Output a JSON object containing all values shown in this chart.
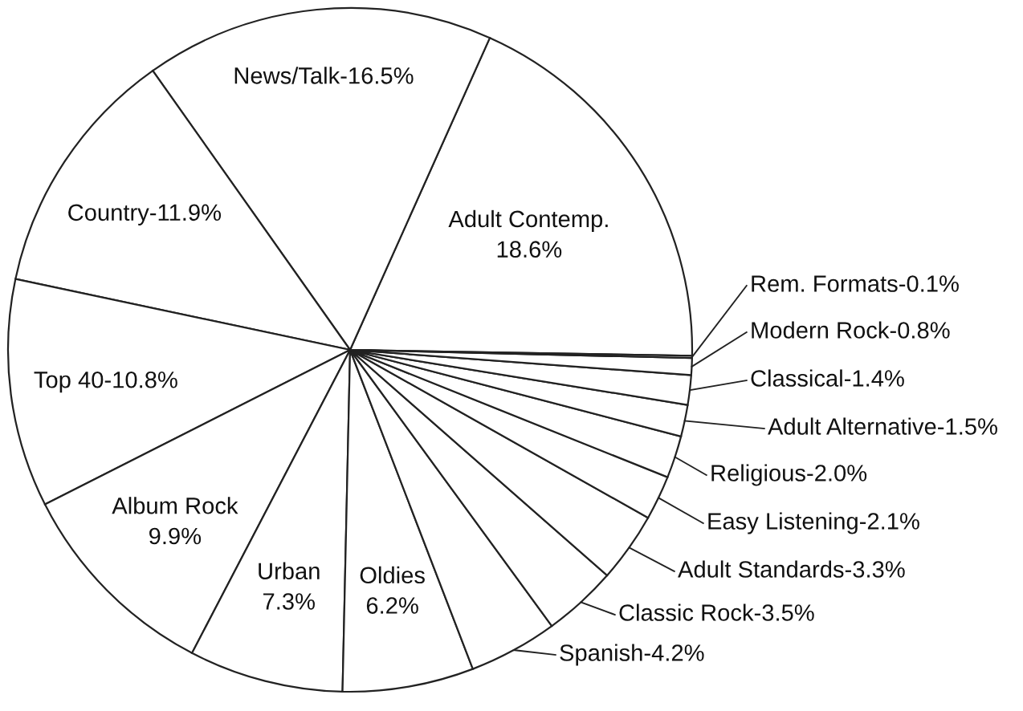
{
  "chart_data": {
    "type": "pie",
    "categories": [
      "Adult Contemp.",
      "News/Talk",
      "Country",
      "Top 40",
      "Album Rock",
      "Urban",
      "Oldies",
      "Spanish",
      "Classic Rock",
      "Adult Standards",
      "Easy Listening",
      "Religious",
      "Adult Alternative",
      "Classical",
      "Modern Rock",
      "Rem. Formats"
    ],
    "values": [
      18.6,
      16.5,
      11.9,
      10.8,
      9.9,
      7.3,
      6.2,
      4.2,
      3.5,
      3.3,
      2.1,
      2.0,
      1.5,
      1.4,
      0.8,
      0.1
    ],
    "value_labels": [
      "18.6%",
      "16.5%",
      "11.9%",
      "10.8%",
      "9.9%",
      "7.3%",
      "6.2%",
      "4.2%",
      "3.5%",
      "3.3%",
      "2.1%",
      "2.0%",
      "1.5%",
      "1.4%",
      "0.8%",
      "0.1%"
    ],
    "colors": [
      "#ffffff",
      "#ffffff",
      "#ffffff",
      "#ffffff",
      "#ffffff",
      "#ffffff",
      "#ffffff",
      "#ffffff",
      "#ffffff",
      "#ffffff",
      "#ffffff",
      "#ffffff",
      "#ffffff",
      "#ffffff",
      "#ffffff",
      "#ffffff"
    ],
    "legend": false
  }
}
